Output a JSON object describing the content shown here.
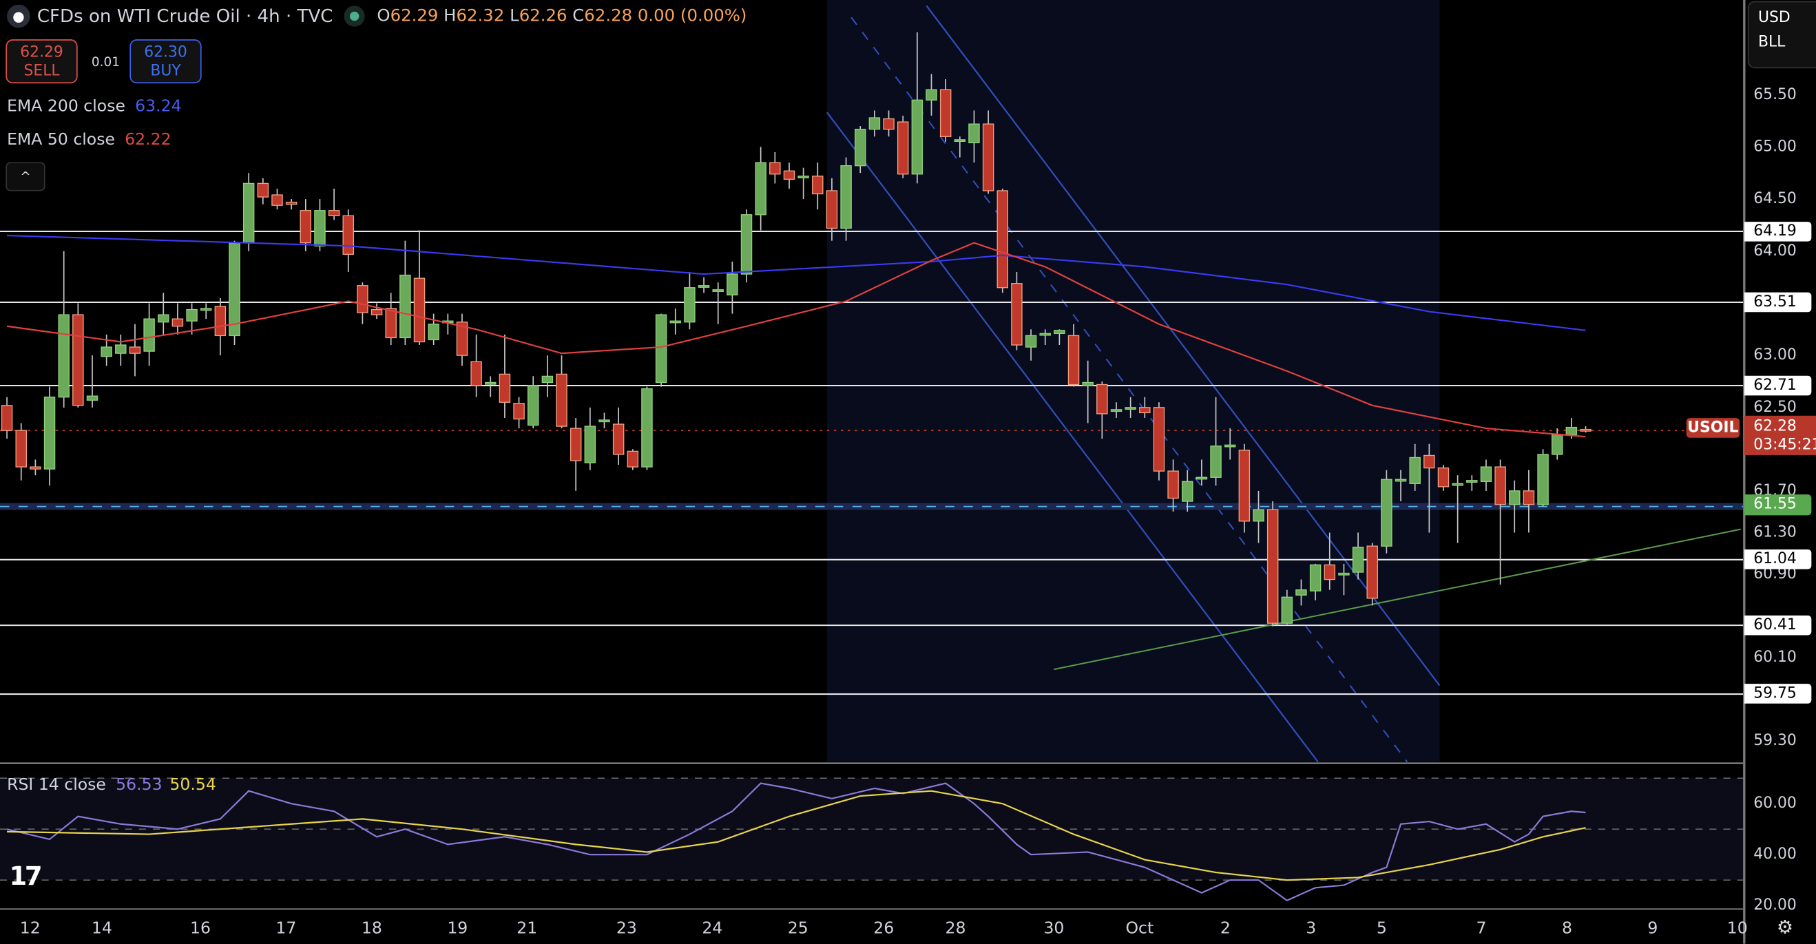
{
  "header": {
    "symbol_title": "CFDs on WTI Crude Oil · 4h · TVC",
    "open_label": "O",
    "open": "62.29",
    "high_label": "H",
    "high": "62.32",
    "low_label": "L",
    "low": "62.26",
    "close_label": "C",
    "close": "62.28",
    "change": "0.00 (0.00%)"
  },
  "trade": {
    "sell_price": "62.29",
    "sell_label": "SELL",
    "spread": "0.01",
    "buy_price": "62.30",
    "buy_label": "BUY"
  },
  "indicators": {
    "ema200_label": "EMA 200 close",
    "ema200_value": "63.24",
    "ema50_label": "EMA 50 close",
    "ema50_value": "62.22",
    "rsi_label": "RSI 14 close",
    "rsi_value": "56.53",
    "rsi_ma_value": "50.54"
  },
  "axis_controls": {
    "currency": "USD",
    "unit": "BLL"
  },
  "price_ticks": [
    "65.50",
    "65.00",
    "64.50",
    "64.00",
    "63.00",
    "62.50",
    "61.70",
    "61.30",
    "60.90",
    "60.10",
    "59.30"
  ],
  "levels": [
    "64.19",
    "63.51",
    "62.71",
    "61.04",
    "60.41",
    "59.75"
  ],
  "support_level": "61.55",
  "current": {
    "symbol": "USOIL",
    "price": "62.28",
    "countdown": "03:45:21"
  },
  "rsi_ticks": [
    "60.00",
    "40.00",
    "20.00"
  ],
  "time_ticks": [
    "12",
    "14",
    "16",
    "17",
    "18",
    "19",
    "21",
    "23",
    "24",
    "25",
    "26",
    "28",
    "30",
    "Oct",
    "2",
    "3",
    "5",
    "7",
    "8",
    "9",
    "10"
  ],
  "colors": {
    "up": "#6aaa5a",
    "down": "#c0392b",
    "ema200": "#3a3af0",
    "ema50": "#e04040",
    "rsi": "#8a7ad8",
    "rsi_ma": "#e8d44a",
    "channel": "#3050c0",
    "trendline": "#5a9a4a"
  },
  "chart_data": {
    "type": "candlestick",
    "title": "CFDs on WTI Crude Oil · 4h · TVC",
    "ylim": [
      59.0,
      66.4
    ],
    "candles_ohlc": [
      [
        62.52,
        62.6,
        62.2,
        62.28
      ],
      [
        62.28,
        62.35,
        61.8,
        61.93
      ],
      [
        61.93,
        62.0,
        61.85,
        61.91
      ],
      [
        61.91,
        62.7,
        61.75,
        62.6
      ],
      [
        62.6,
        64.0,
        62.5,
        63.39
      ],
      [
        63.39,
        63.5,
        62.5,
        62.52
      ],
      [
        62.57,
        63.0,
        62.5,
        62.61
      ],
      [
        62.99,
        63.2,
        62.9,
        63.08
      ],
      [
        63.02,
        63.2,
        62.9,
        63.1
      ],
      [
        63.08,
        63.3,
        62.8,
        63.02
      ],
      [
        63.04,
        63.5,
        62.9,
        63.35
      ],
      [
        63.32,
        63.6,
        63.2,
        63.39
      ],
      [
        63.35,
        63.5,
        63.2,
        63.28
      ],
      [
        63.33,
        63.5,
        63.2,
        63.44
      ],
      [
        63.44,
        63.5,
        63.35,
        63.45
      ],
      [
        63.47,
        63.55,
        63.0,
        63.19
      ],
      [
        63.19,
        64.1,
        63.1,
        64.08
      ],
      [
        64.08,
        64.75,
        64.0,
        64.65
      ],
      [
        64.65,
        64.7,
        64.45,
        64.52
      ],
      [
        64.54,
        64.6,
        64.4,
        64.44
      ],
      [
        64.47,
        64.5,
        64.4,
        64.45
      ],
      [
        64.39,
        64.5,
        64.0,
        64.08
      ],
      [
        64.05,
        64.5,
        64.0,
        64.39
      ],
      [
        64.39,
        64.6,
        64.3,
        64.34
      ],
      [
        64.34,
        64.4,
        63.8,
        63.97
      ],
      [
        63.67,
        63.7,
        63.3,
        63.41
      ],
      [
        63.44,
        63.5,
        63.35,
        63.39
      ],
      [
        63.45,
        63.6,
        63.1,
        63.17
      ],
      [
        63.17,
        64.1,
        63.1,
        63.77
      ],
      [
        63.74,
        64.2,
        63.1,
        63.13
      ],
      [
        63.15,
        63.4,
        63.1,
        63.3
      ],
      [
        63.33,
        63.4,
        63.2,
        63.33
      ],
      [
        63.32,
        63.4,
        62.9,
        63.0
      ],
      [
        62.94,
        63.2,
        62.6,
        62.71
      ],
      [
        62.74,
        62.8,
        62.6,
        62.74
      ],
      [
        62.82,
        63.2,
        62.4,
        62.55
      ],
      [
        62.54,
        62.6,
        62.3,
        62.39
      ],
      [
        62.33,
        62.8,
        62.3,
        62.71
      ],
      [
        62.74,
        63.0,
        62.6,
        62.8
      ],
      [
        62.82,
        63.0,
        62.3,
        62.32
      ],
      [
        62.3,
        62.4,
        61.7,
        61.99
      ],
      [
        61.97,
        62.5,
        61.9,
        62.32
      ],
      [
        62.38,
        62.45,
        62.3,
        62.38
      ],
      [
        62.34,
        62.5,
        61.95,
        62.05
      ],
      [
        62.08,
        62.1,
        61.9,
        61.93
      ],
      [
        61.93,
        62.7,
        61.9,
        62.68
      ],
      [
        62.74,
        63.4,
        62.7,
        63.39
      ],
      [
        63.33,
        63.45,
        63.2,
        63.33
      ],
      [
        63.32,
        63.8,
        63.25,
        63.65
      ],
      [
        63.67,
        63.75,
        63.6,
        63.67
      ],
      [
        63.63,
        63.7,
        63.3,
        63.63
      ],
      [
        63.58,
        63.9,
        63.4,
        63.78
      ],
      [
        63.78,
        64.4,
        63.7,
        64.35
      ],
      [
        64.35,
        65.0,
        64.2,
        64.85
      ],
      [
        64.85,
        64.95,
        64.65,
        64.74
      ],
      [
        64.77,
        64.85,
        64.6,
        64.69
      ],
      [
        64.72,
        64.8,
        64.5,
        64.72
      ],
      [
        64.72,
        64.85,
        64.4,
        64.55
      ],
      [
        64.58,
        64.7,
        64.1,
        64.22
      ],
      [
        64.22,
        64.9,
        64.1,
        64.82
      ],
      [
        64.82,
        65.2,
        64.75,
        65.17
      ],
      [
        65.17,
        65.35,
        65.1,
        65.28
      ],
      [
        65.27,
        65.35,
        65.1,
        65.17
      ],
      [
        65.24,
        65.3,
        64.7,
        64.74
      ],
      [
        64.74,
        66.1,
        64.65,
        65.45
      ],
      [
        65.45,
        65.7,
        65.3,
        65.55
      ],
      [
        65.55,
        65.65,
        65.05,
        65.1
      ],
      [
        65.07,
        65.1,
        64.9,
        65.07
      ],
      [
        65.04,
        65.35,
        64.85,
        65.22
      ],
      [
        65.22,
        65.35,
        64.55,
        64.58
      ],
      [
        64.58,
        64.6,
        63.6,
        63.65
      ],
      [
        63.69,
        63.8,
        63.05,
        63.1
      ],
      [
        63.08,
        63.25,
        62.95,
        63.19
      ],
      [
        63.21,
        63.25,
        63.1,
        63.21
      ],
      [
        63.21,
        63.25,
        63.1,
        63.24
      ],
      [
        63.19,
        63.3,
        62.7,
        62.72
      ],
      [
        62.71,
        62.95,
        62.35,
        62.74
      ],
      [
        62.72,
        62.75,
        62.2,
        62.44
      ],
      [
        62.48,
        62.55,
        62.4,
        62.48
      ],
      [
        62.5,
        62.6,
        62.4,
        62.5
      ],
      [
        62.5,
        62.6,
        62.4,
        62.45
      ],
      [
        62.5,
        62.55,
        61.8,
        61.89
      ],
      [
        61.89,
        62.0,
        61.5,
        61.63
      ],
      [
        61.6,
        61.9,
        61.5,
        61.79
      ],
      [
        61.83,
        62.0,
        61.75,
        61.83
      ],
      [
        61.83,
        62.6,
        61.75,
        62.13
      ],
      [
        62.14,
        62.3,
        62.0,
        62.14
      ],
      [
        62.09,
        62.15,
        61.3,
        61.41
      ],
      [
        61.41,
        61.7,
        61.2,
        61.52
      ],
      [
        61.52,
        61.6,
        60.4,
        60.43
      ],
      [
        60.43,
        60.75,
        60.42,
        60.68
      ],
      [
        60.7,
        60.85,
        60.6,
        60.75
      ],
      [
        60.74,
        61.0,
        60.65,
        60.99
      ],
      [
        60.99,
        61.3,
        60.75,
        60.85
      ],
      [
        60.91,
        61.0,
        60.7,
        60.91
      ],
      [
        60.92,
        61.3,
        60.85,
        61.16
      ],
      [
        61.17,
        61.2,
        60.6,
        60.67
      ],
      [
        61.17,
        61.9,
        61.1,
        61.81
      ],
      [
        61.81,
        61.9,
        61.6,
        61.81
      ],
      [
        61.77,
        62.15,
        61.7,
        62.02
      ],
      [
        62.04,
        62.15,
        61.3,
        61.92
      ],
      [
        61.92,
        61.95,
        61.7,
        61.74
      ],
      [
        61.77,
        61.85,
        61.2,
        61.77
      ],
      [
        61.8,
        61.85,
        61.7,
        61.8
      ],
      [
        61.79,
        62.0,
        61.7,
        61.93
      ],
      [
        61.93,
        62.0,
        60.8,
        61.57
      ],
      [
        61.57,
        61.8,
        61.3,
        61.7
      ],
      [
        61.7,
        61.9,
        61.3,
        61.57
      ],
      [
        61.57,
        62.1,
        61.55,
        62.05
      ],
      [
        62.05,
        62.3,
        62.0,
        62.24
      ],
      [
        62.24,
        62.4,
        62.2,
        62.31
      ],
      [
        62.29,
        62.32,
        62.26,
        62.28
      ]
    ],
    "ema200": [
      [
        0,
        64.15
      ],
      [
        24,
        64.05
      ],
      [
        49,
        63.78
      ],
      [
        65,
        63.9
      ],
      [
        70,
        63.96
      ],
      [
        80,
        63.85
      ],
      [
        90,
        63.68
      ],
      [
        100,
        63.42
      ],
      [
        111,
        63.24
      ]
    ],
    "ema50": [
      [
        0,
        63.28
      ],
      [
        8,
        63.13
      ],
      [
        16,
        63.3
      ],
      [
        24,
        63.52
      ],
      [
        33,
        63.25
      ],
      [
        39,
        63.02
      ],
      [
        46,
        63.08
      ],
      [
        52,
        63.28
      ],
      [
        59,
        63.52
      ],
      [
        65,
        63.91
      ],
      [
        68,
        64.08
      ],
      [
        73,
        63.85
      ],
      [
        81,
        63.3
      ],
      [
        90,
        62.85
      ],
      [
        96,
        62.52
      ],
      [
        104,
        62.3
      ],
      [
        111,
        62.22
      ]
    ],
    "horizontal_levels": [
      64.19,
      63.51,
      62.71,
      61.04,
      60.41,
      59.75
    ],
    "support_zone": 61.55,
    "last_price": 62.28,
    "rsi": [
      [
        0,
        50
      ],
      [
        3,
        46
      ],
      [
        5,
        55
      ],
      [
        8,
        52
      ],
      [
        12,
        50
      ],
      [
        15,
        54
      ],
      [
        17,
        65
      ],
      [
        20,
        60
      ],
      [
        23,
        57
      ],
      [
        26,
        47
      ],
      [
        28,
        50
      ],
      [
        31,
        44
      ],
      [
        35,
        47
      ],
      [
        38,
        44
      ],
      [
        41,
        40
      ],
      [
        45,
        40
      ],
      [
        48,
        48
      ],
      [
        51,
        57
      ],
      [
        53,
        68
      ],
      [
        55,
        66
      ],
      [
        58,
        62
      ],
      [
        61,
        66
      ],
      [
        63,
        64
      ],
      [
        66,
        68
      ],
      [
        68,
        60
      ],
      [
        69,
        55
      ],
      [
        71,
        44
      ],
      [
        72,
        40
      ],
      [
        76,
        41
      ],
      [
        80,
        35
      ],
      [
        82,
        30
      ],
      [
        84,
        25
      ],
      [
        86,
        30
      ],
      [
        88,
        30
      ],
      [
        90,
        22
      ],
      [
        92,
        27
      ],
      [
        94,
        28
      ],
      [
        96,
        33
      ],
      [
        97,
        35
      ],
      [
        98,
        52
      ],
      [
        100,
        53
      ],
      [
        102,
        50
      ],
      [
        104,
        52
      ],
      [
        106,
        45
      ],
      [
        107,
        48
      ],
      [
        108,
        55
      ],
      [
        110,
        57
      ],
      [
        111,
        56.53
      ]
    ],
    "rsi_ma": [
      [
        0,
        49
      ],
      [
        10,
        48
      ],
      [
        20,
        52
      ],
      [
        25,
        54
      ],
      [
        32,
        50
      ],
      [
        40,
        44
      ],
      [
        45,
        41
      ],
      [
        50,
        45
      ],
      [
        55,
        55
      ],
      [
        60,
        63
      ],
      [
        65,
        65
      ],
      [
        70,
        60
      ],
      [
        75,
        48
      ],
      [
        80,
        38
      ],
      [
        85,
        33
      ],
      [
        90,
        30
      ],
      [
        95,
        31
      ],
      [
        100,
        36
      ],
      [
        105,
        42
      ],
      [
        108,
        47
      ],
      [
        111,
        50.54
      ]
    ],
    "rsi_ylim": [
      15,
      75
    ],
    "rsi_bands": [
      70,
      50,
      30
    ]
  }
}
